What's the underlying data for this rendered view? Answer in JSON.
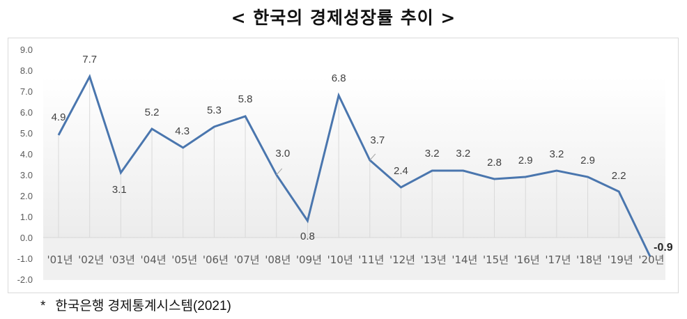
{
  "title": "< 한국의 경제성장률 추이 >",
  "footnote": {
    "marker": "*",
    "text": "한국은행  경제통계시스템(2021)"
  },
  "colors": {
    "line": "#4a76ae",
    "gridline": "#d9d9d9",
    "plot_gradient_top": "#ffffff",
    "plot_gradient_bottom": "#efefef"
  },
  "chart_data": {
    "type": "line",
    "title": "< 한국의 경제성장률 추이 >",
    "xlabel": "",
    "ylabel": "",
    "categories": [
      "'01년",
      "'02년",
      "'03년",
      "'04년",
      "'05년",
      "'06년",
      "'07년",
      "'08년",
      "'09년",
      "'10년",
      "'11년",
      "'12년",
      "'13년",
      "'14년",
      "'15년",
      "'16년",
      "'17년",
      "'18년",
      "'19년",
      "'20년"
    ],
    "series": [
      {
        "name": "경제성장률",
        "values": [
          4.9,
          7.7,
          3.1,
          5.2,
          4.3,
          5.3,
          5.8,
          3.0,
          0.8,
          6.8,
          3.7,
          2.4,
          3.2,
          3.2,
          2.8,
          2.9,
          3.2,
          2.9,
          2.2,
          -0.9
        ]
      }
    ],
    "data_labels": [
      "4.9",
      "7.7",
      "3.1",
      "5.2",
      "4.3",
      "5.3",
      "5.8",
      "3.0",
      "0.8",
      "6.8",
      "3.7",
      "2.4",
      "3.2",
      "3.2",
      "2.8",
      "2.9",
      "3.2",
      "2.9",
      "2.2",
      "-0.9"
    ],
    "ylim": [
      -2.0,
      9.0
    ],
    "yticks": [
      "9.0",
      "8.0",
      "7.0",
      "6.0",
      "5.0",
      "4.0",
      "3.0",
      "2.0",
      "1.0",
      "0.0",
      "-1.0",
      "-2.0"
    ],
    "grid": "drop lines from points to zero axis",
    "legend": "none",
    "source": "* 한국은행  경제통계시스템(2021)"
  }
}
